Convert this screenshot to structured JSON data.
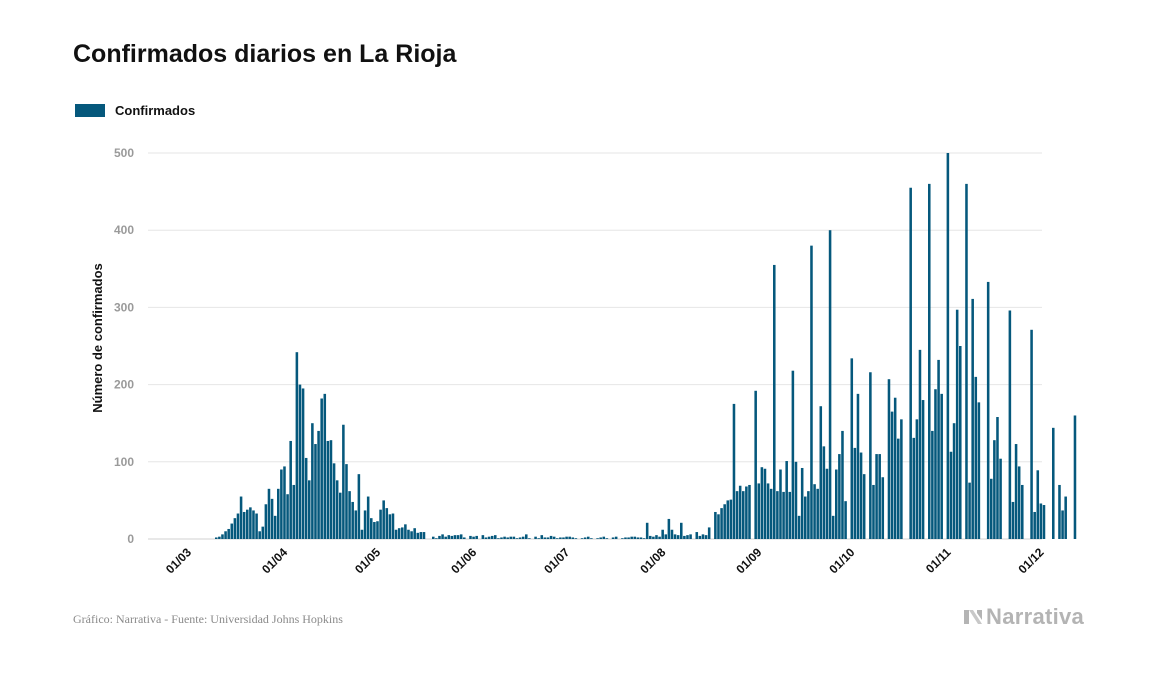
{
  "title": "Confirmados diarios en La Rioja",
  "source": "Gráfico: Narrativa - Fuente: Universidad Johns Hopkins",
  "brand": {
    "name": "Narrativa",
    "icon": "narrativa-logo-icon"
  },
  "colors": {
    "bar": "#05587c",
    "grid": "#e6e6e6",
    "tick_text": "#9a9a9a"
  },
  "chart_data": {
    "type": "bar",
    "title": "Confirmados diarios en La Rioja",
    "legend": {
      "placement": "top-left",
      "entries": [
        "Confirmados"
      ]
    },
    "ylabel": "Número de confirmados",
    "xlabel": "",
    "ylim": [
      0,
      500
    ],
    "yticks": [
      0,
      100,
      200,
      300,
      400,
      500
    ],
    "grid": true,
    "xtick_labels": [
      "01/03",
      "01/04",
      "01/05",
      "01/06",
      "01/07",
      "01/08",
      "01/09",
      "01/10",
      "01/11",
      "01/12"
    ],
    "x_start": "01/03",
    "series": [
      {
        "name": "Confirmados",
        "color": "#05587c",
        "values": [
          0,
          0,
          0,
          0,
          0,
          0,
          0,
          0,
          0,
          0,
          2,
          3,
          6,
          10,
          13,
          20,
          27,
          33,
          55,
          35,
          38,
          41,
          37,
          33,
          10,
          16,
          45,
          65,
          52,
          30,
          65,
          90,
          94,
          58,
          127,
          70,
          242,
          200,
          195,
          105,
          76,
          150,
          123,
          140,
          182,
          188,
          127,
          128,
          98,
          76,
          60,
          148,
          97,
          62,
          48,
          37,
          84,
          12,
          37,
          55,
          27,
          22,
          23,
          38,
          50,
          40,
          32,
          33,
          12,
          14,
          15,
          19,
          12,
          10,
          14,
          8,
          9,
          9,
          0,
          0,
          3,
          1,
          4,
          6,
          3,
          5,
          4,
          5,
          5,
          6,
          2,
          0,
          4,
          3,
          4,
          0,
          5,
          2,
          3,
          4,
          5,
          1,
          2,
          3,
          2,
          3,
          3,
          1,
          2,
          3,
          6,
          1,
          0,
          3,
          1,
          5,
          2,
          2,
          4,
          3,
          1,
          2,
          2,
          3,
          3,
          2,
          1,
          0,
          1,
          2,
          3,
          1,
          0,
          1,
          2,
          3,
          1,
          0,
          2,
          3,
          0,
          1,
          2,
          2,
          3,
          3,
          2,
          2,
          1,
          21,
          4,
          3,
          5,
          3,
          12,
          6,
          26,
          12,
          6,
          5,
          21,
          4,
          5,
          6,
          0,
          9,
          4,
          6,
          5,
          15,
          0,
          35,
          32,
          40,
          45,
          50,
          51,
          175,
          62,
          69,
          62,
          68,
          70,
          0,
          192,
          72,
          93,
          91,
          72,
          65,
          355,
          62,
          90,
          61,
          101,
          61,
          218,
          100,
          30,
          92,
          55,
          62,
          380,
          71,
          65,
          172,
          120,
          91,
          400,
          30,
          90,
          110,
          140,
          49,
          0,
          234,
          118,
          188,
          112,
          84,
          0,
          216,
          70,
          110,
          110,
          80,
          0,
          207,
          165,
          183,
          130,
          155,
          0,
          0,
          455,
          131,
          155,
          245,
          180,
          0,
          460,
          140,
          194,
          232,
          188,
          0,
          500,
          113,
          150,
          297,
          250,
          0,
          460,
          73,
          311,
          210,
          177,
          0,
          0,
          333,
          78,
          128,
          158,
          104,
          0,
          0,
          296,
          48,
          123,
          94,
          70,
          0,
          0,
          271,
          35,
          89,
          46,
          44,
          0,
          0,
          144,
          0,
          70,
          37,
          55,
          0,
          0,
          160
        ]
      }
    ]
  }
}
